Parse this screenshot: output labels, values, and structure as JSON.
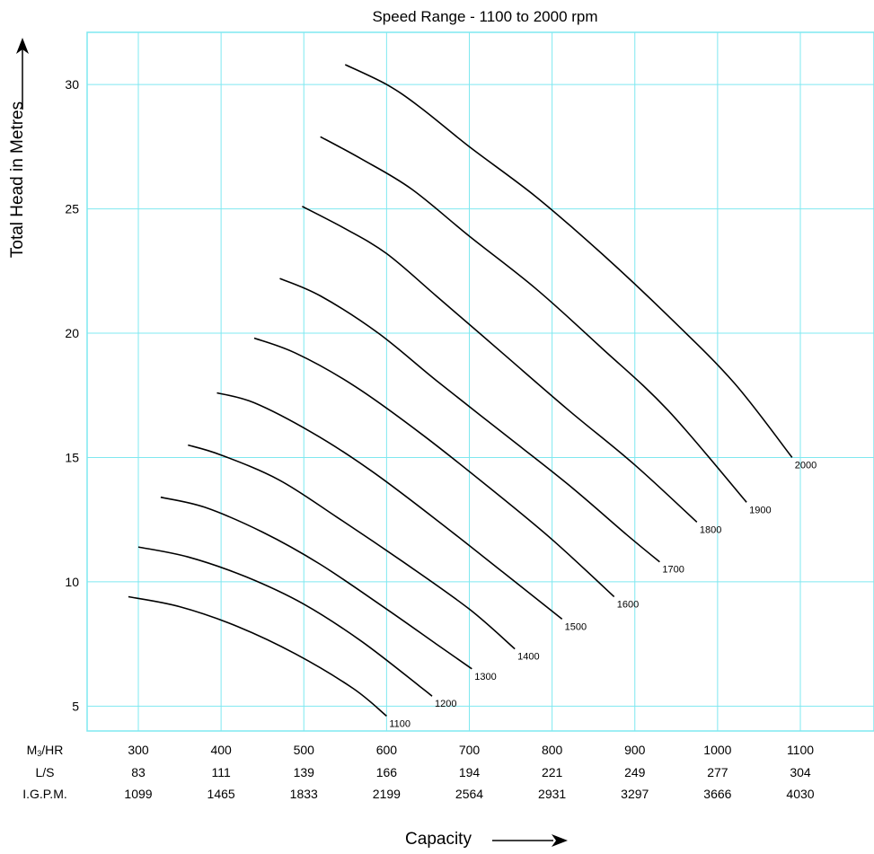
{
  "chart_data": {
    "type": "line",
    "title": "Speed Range - 1100 to 2000 rpm",
    "ylabel": "Total Head in Metres",
    "xlabel": "Capacity",
    "ylim": [
      4.0,
      32.1
    ],
    "xlim": [
      240,
      1100
    ],
    "y_ticks": [
      5,
      10,
      15,
      20,
      25,
      30
    ],
    "x_grid": [
      300,
      400,
      500,
      600,
      700,
      800,
      900,
      1000,
      1100
    ],
    "x_rows": [
      {
        "label": "M3/HR",
        "values": [
          "300",
          "400",
          "500",
          "600",
          "700",
          "800",
          "900",
          "1000",
          "1100"
        ]
      },
      {
        "label": "L/S",
        "values": [
          "83",
          "111",
          "139",
          "166",
          "194",
          "221",
          "249",
          "277",
          "304"
        ]
      },
      {
        "label": "I.G.P.M.",
        "values": [
          "1099",
          "1465",
          "1833",
          "2199",
          "2564",
          "2931",
          "3297",
          "3666",
          "4030"
        ]
      }
    ],
    "grid": true,
    "colors": {
      "grid": "#7fe8f0",
      "curve": "#000000"
    },
    "series": [
      {
        "name": "1100",
        "x": [
          288,
          350,
          420,
          490,
          560,
          600
        ],
        "y": [
          9.4,
          9.0,
          8.2,
          7.1,
          5.7,
          4.6
        ]
      },
      {
        "name": "1200",
        "x": [
          300,
          360,
          430,
          500,
          570,
          640,
          655
        ],
        "y": [
          11.4,
          11.0,
          10.2,
          9.1,
          7.6,
          5.8,
          5.4
        ]
      },
      {
        "name": "1300",
        "x": [
          327,
          380,
          450,
          520,
          600,
          660,
          703
        ],
        "y": [
          13.4,
          13.0,
          12.0,
          10.7,
          8.9,
          7.5,
          6.5
        ]
      },
      {
        "name": "1400",
        "x": [
          360,
          400,
          470,
          540,
          620,
          700,
          755
        ],
        "y": [
          15.5,
          15.1,
          14.1,
          12.6,
          10.8,
          8.9,
          7.3
        ]
      },
      {
        "name": "1500",
        "x": [
          395,
          440,
          510,
          580,
          660,
          740,
          812
        ],
        "y": [
          17.6,
          17.2,
          16.0,
          14.5,
          12.5,
          10.4,
          8.5
        ]
      },
      {
        "name": "1600",
        "x": [
          440,
          490,
          560,
          640,
          720,
          800,
          875
        ],
        "y": [
          19.8,
          19.2,
          17.9,
          16.0,
          13.9,
          11.7,
          9.4
        ]
      },
      {
        "name": "1700",
        "x": [
          471,
          520,
          590,
          660,
          740,
          820,
          890,
          930
        ],
        "y": [
          22.2,
          21.5,
          20.0,
          18.1,
          16.0,
          13.9,
          11.9,
          10.8
        ]
      },
      {
        "name": "1800",
        "x": [
          498,
          550,
          600,
          660,
          740,
          820,
          900,
          975
        ],
        "y": [
          25.1,
          24.2,
          23.2,
          21.5,
          19.2,
          16.9,
          14.7,
          12.4
        ]
      },
      {
        "name": "1900",
        "x": [
          520,
          570,
          630,
          700,
          780,
          860,
          940,
          1035
        ],
        "y": [
          27.9,
          27.0,
          25.8,
          23.9,
          21.8,
          19.4,
          16.9,
          13.2
        ]
      },
      {
        "name": "2000",
        "x": [
          550,
          600,
          640,
          700,
          780,
          860,
          940,
          1020,
          1090
        ],
        "y": [
          30.8,
          30.0,
          29.1,
          27.5,
          25.5,
          23.2,
          20.7,
          18.0,
          15.0
        ]
      }
    ]
  }
}
